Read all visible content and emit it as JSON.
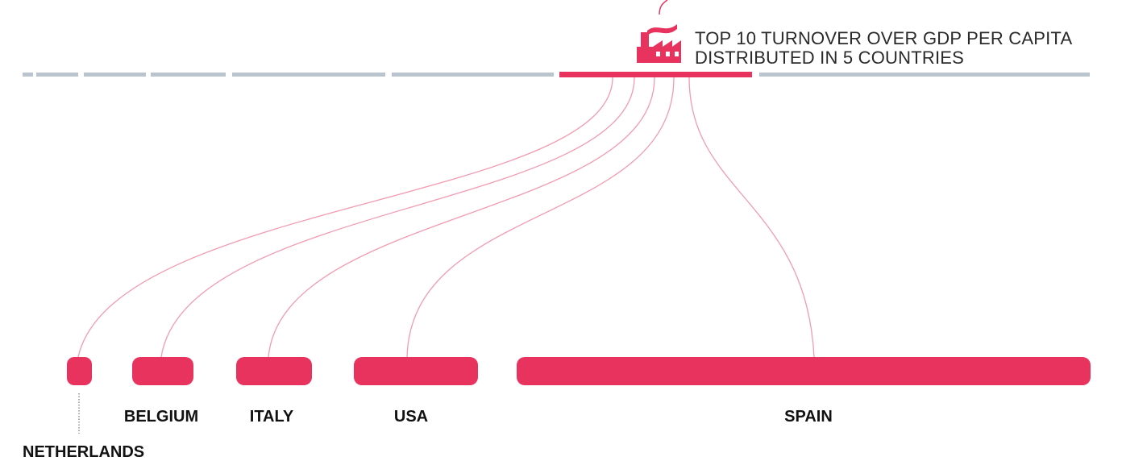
{
  "header": {
    "title_lines": [
      "TOP 10 TURNOVER OVER GDP PER CAPITA",
      "DISTRIBUTED IN 5 COUNTRIES"
    ]
  },
  "countries": [
    "NETHERLANDS",
    "BELGIUM",
    "ITALY",
    "USA",
    "SPAIN"
  ]
}
